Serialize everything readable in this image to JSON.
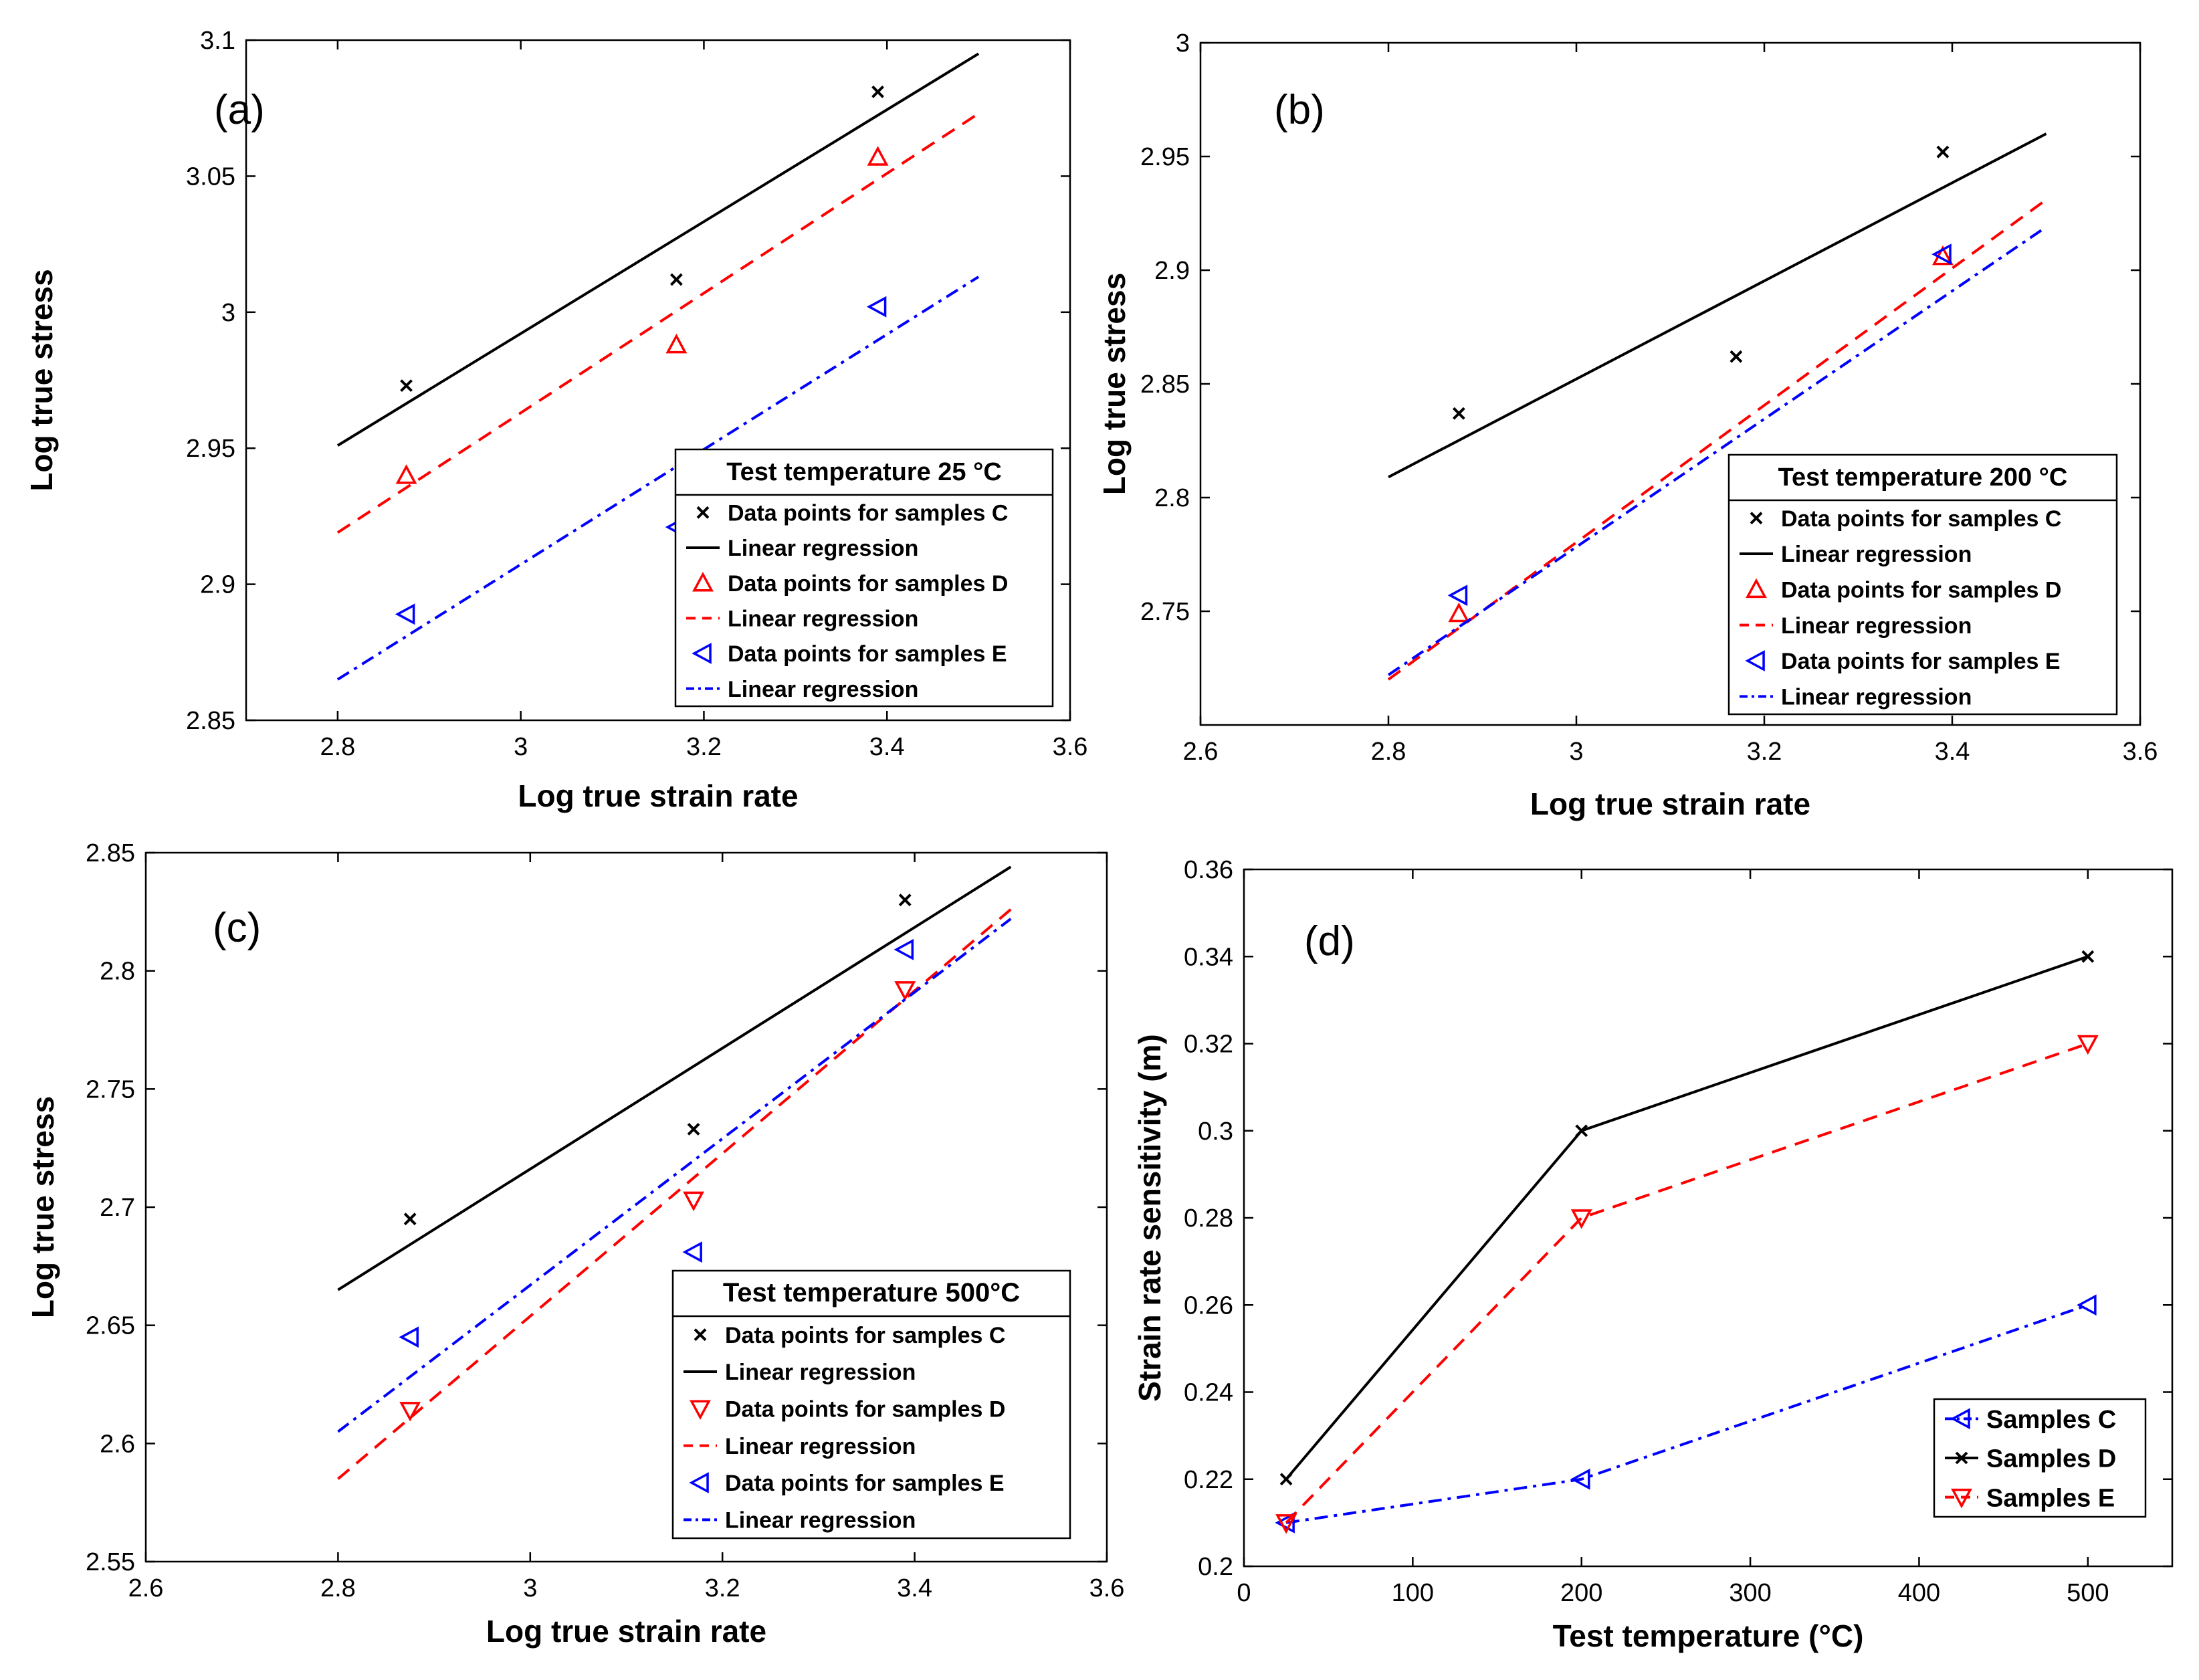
{
  "colors": {
    "black": "#000000",
    "red": "#ff0000",
    "blue": "#0000ff"
  },
  "chart_data": [
    {
      "panel_label": "(a)",
      "type": "scatter",
      "xlabel": "Log true strain rate",
      "ylabel": "Log true stress",
      "xlim": [
        2.7,
        3.6
      ],
      "ylim": [
        2.85,
        3.1
      ],
      "xticks": [
        2.8,
        3,
        3.2,
        3.4,
        3.6
      ],
      "yticks": [
        2.85,
        2.9,
        2.95,
        3,
        3.05,
        3.1
      ],
      "legend_title": "Test temperature 25 °C",
      "legend_position": "bottom-right",
      "series": [
        {
          "name": "Data points for samples C",
          "kind": "points",
          "marker": "x",
          "color": "#000000",
          "x": [
            2.875,
            3.17,
            3.39
          ],
          "y": [
            2.973,
            3.012,
            3.081
          ]
        },
        {
          "name": "Linear regression",
          "kind": "line",
          "dash": "solid",
          "color": "#000000",
          "x": [
            2.8,
            3.5
          ],
          "y": [
            2.951,
            3.095
          ]
        },
        {
          "name": "Data points for samples D",
          "kind": "points",
          "marker": "triangle-up",
          "color": "#ff0000",
          "x": [
            2.875,
            3.17,
            3.39
          ],
          "y": [
            2.94,
            2.988,
            3.057
          ]
        },
        {
          "name": "Linear regression",
          "kind": "line",
          "dash": "dashed",
          "color": "#ff0000",
          "x": [
            2.8,
            3.5
          ],
          "y": [
            2.919,
            3.073
          ]
        },
        {
          "name": "Data points for samples E",
          "kind": "points",
          "marker": "triangle-left",
          "color": "#0000ff",
          "x": [
            2.875,
            3.17,
            3.39
          ],
          "y": [
            2.889,
            2.921,
            3.002
          ]
        },
        {
          "name": "Linear regression",
          "kind": "line",
          "dash": "dashdot",
          "color": "#0000ff",
          "x": [
            2.8,
            3.5
          ],
          "y": [
            2.865,
            3.013
          ]
        }
      ]
    },
    {
      "panel_label": "(b)",
      "type": "scatter",
      "xlabel": "Log true strain rate",
      "ylabel": "Log true stress",
      "xlim": [
        2.6,
        3.6
      ],
      "ylim": [
        2.7,
        3.0
      ],
      "xticks": [
        2.6,
        2.8,
        3,
        3.2,
        3.4,
        3.6
      ],
      "yticks": [
        2.75,
        2.8,
        2.85,
        2.9,
        2.95,
        3
      ],
      "legend_title": "Test temperature 200 °C",
      "legend_position": "bottom-right",
      "series": [
        {
          "name": "Data points for samples C",
          "kind": "points",
          "marker": "x",
          "color": "#000000",
          "x": [
            2.875,
            3.17,
            3.39
          ],
          "y": [
            2.837,
            2.862,
            2.952
          ]
        },
        {
          "name": "Linear regression",
          "kind": "line",
          "dash": "solid",
          "color": "#000000",
          "x": [
            2.8,
            3.5
          ],
          "y": [
            2.809,
            2.96
          ]
        },
        {
          "name": "Data points for samples D",
          "kind": "points",
          "marker": "triangle-up",
          "color": "#ff0000",
          "x": [
            2.875,
            3.39
          ],
          "y": [
            2.749,
            2.906
          ]
        },
        {
          "name": "Linear regression",
          "kind": "line",
          "dash": "dashed",
          "color": "#ff0000",
          "x": [
            2.8,
            3.5
          ],
          "y": [
            2.72,
            2.931
          ]
        },
        {
          "name": "Data points for samples E",
          "kind": "points",
          "marker": "triangle-left",
          "color": "#0000ff",
          "x": [
            2.875,
            3.39
          ],
          "y": [
            2.757,
            2.907
          ]
        },
        {
          "name": "Linear regression",
          "kind": "line",
          "dash": "dashdot",
          "color": "#0000ff",
          "x": [
            2.8,
            3.5
          ],
          "y": [
            2.722,
            2.919
          ]
        }
      ]
    },
    {
      "panel_label": "(c)",
      "type": "scatter",
      "xlabel": "Log true strain rate",
      "ylabel": "Log true stress",
      "xlim": [
        2.6,
        3.6
      ],
      "ylim": [
        2.55,
        2.85
      ],
      "xticks": [
        2.6,
        2.8,
        3,
        3.2,
        3.4,
        3.6
      ],
      "yticks": [
        2.55,
        2.6,
        2.65,
        2.7,
        2.75,
        2.8,
        2.85
      ],
      "legend_title": "Test temperature 500°C",
      "legend_position": "bottom-right",
      "series": [
        {
          "name": "Data points for samples C",
          "kind": "points",
          "marker": "x",
          "color": "#000000",
          "x": [
            2.875,
            3.17,
            3.39
          ],
          "y": [
            2.695,
            2.733,
            2.83
          ]
        },
        {
          "name": "Linear regression",
          "kind": "line",
          "dash": "solid",
          "color": "#000000",
          "x": [
            2.8,
            3.5
          ],
          "y": [
            2.665,
            2.844
          ]
        },
        {
          "name": "Data points for samples D",
          "kind": "points",
          "marker": "triangle-down",
          "color": "#ff0000",
          "x": [
            2.875,
            3.17,
            3.39
          ],
          "y": [
            2.614,
            2.703,
            2.792
          ]
        },
        {
          "name": "Linear regression",
          "kind": "line",
          "dash": "dashed",
          "color": "#ff0000",
          "x": [
            2.8,
            3.5
          ],
          "y": [
            2.585,
            2.826
          ]
        },
        {
          "name": "Data points for samples E",
          "kind": "points",
          "marker": "triangle-left",
          "color": "#0000ff",
          "x": [
            2.875,
            3.17,
            3.39
          ],
          "y": [
            2.645,
            2.681,
            2.809
          ]
        },
        {
          "name": "Linear regression",
          "kind": "line",
          "dash": "dashdot",
          "color": "#0000ff",
          "x": [
            2.8,
            3.5
          ],
          "y": [
            2.605,
            2.822
          ]
        }
      ]
    },
    {
      "panel_label": "(d)",
      "type": "line",
      "xlabel": "Test temperature (°C)",
      "ylabel": "Strain rate sensitivity (m)",
      "xlim": [
        0,
        550
      ],
      "ylim": [
        0.2,
        0.36
      ],
      "xticks": [
        0,
        100,
        200,
        300,
        400,
        500
      ],
      "yticks": [
        0.2,
        0.22,
        0.24,
        0.26,
        0.28,
        0.3,
        0.32,
        0.34,
        0.36
      ],
      "legend_title": "",
      "legend_position": "bottom-right",
      "series": [
        {
          "name": "Samples C",
          "kind": "linepoints",
          "marker": "triangle-left",
          "dash": "dashdot",
          "color": "#0000ff",
          "x": [
            25,
            200,
            500
          ],
          "y": [
            0.21,
            0.22,
            0.26
          ]
        },
        {
          "name": "Samples D",
          "kind": "linepoints",
          "marker": "x",
          "dash": "solid",
          "color": "#000000",
          "x": [
            25,
            200,
            500
          ],
          "y": [
            0.22,
            0.3,
            0.34
          ]
        },
        {
          "name": "Samples E",
          "kind": "linepoints",
          "marker": "triangle-down",
          "dash": "dashed",
          "color": "#ff0000",
          "x": [
            25,
            200,
            500
          ],
          "y": [
            0.21,
            0.28,
            0.32
          ]
        }
      ]
    }
  ]
}
